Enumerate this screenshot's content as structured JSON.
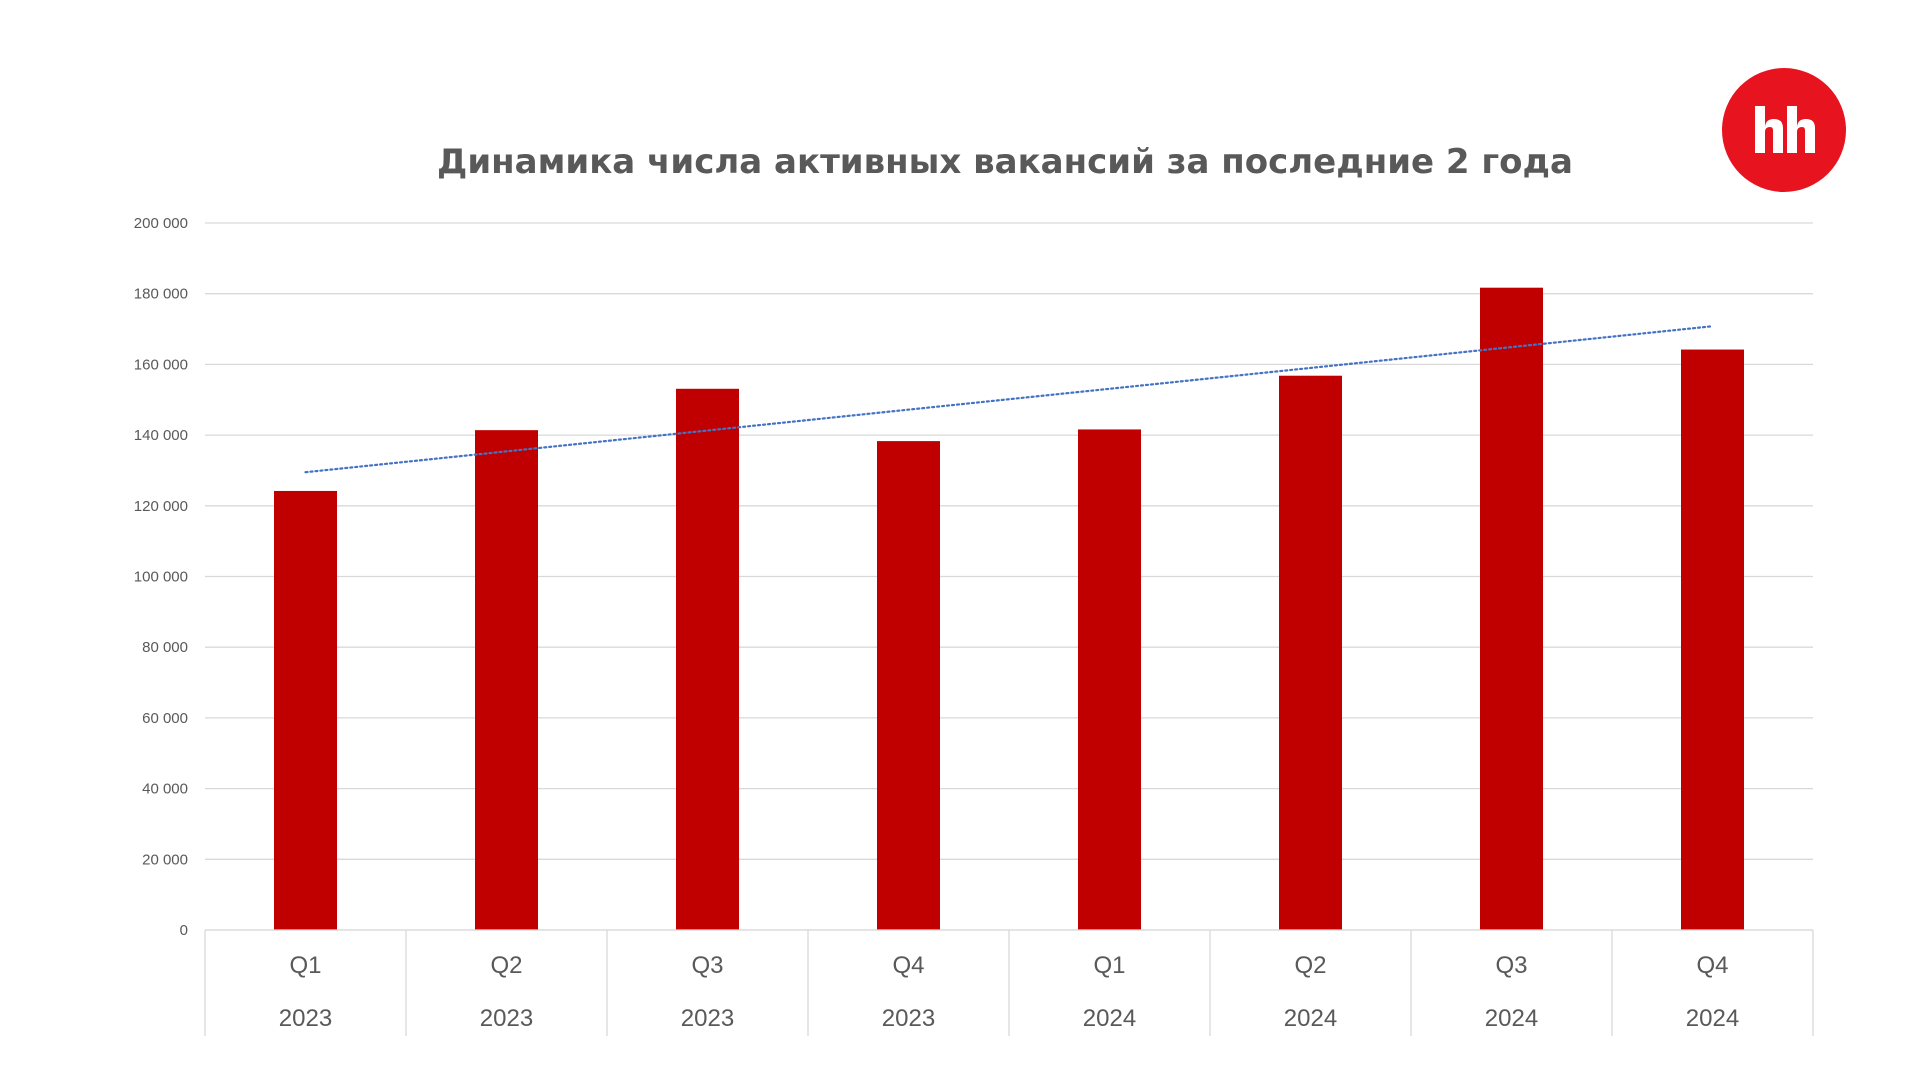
{
  "logo": {
    "text": "hh",
    "color": "#e7141f"
  },
  "chart_data": {
    "type": "bar",
    "title": "Динамика числа активных вакансий за последние 2 года",
    "categories": [
      {
        "quarter": "Q1",
        "year": "2023"
      },
      {
        "quarter": "Q2",
        "year": "2023"
      },
      {
        "quarter": "Q3",
        "year": "2023"
      },
      {
        "quarter": "Q4",
        "year": "2023"
      },
      {
        "quarter": "Q1",
        "year": "2024"
      },
      {
        "quarter": "Q2",
        "year": "2024"
      },
      {
        "quarter": "Q3",
        "year": "2024"
      },
      {
        "quarter": "Q4",
        "year": "2024"
      }
    ],
    "values": [
      124200,
      141400,
      153100,
      138300,
      141600,
      156800,
      181700,
      164200
    ],
    "ylim": [
      0,
      200000
    ],
    "yticks": [
      0,
      20000,
      40000,
      60000,
      80000,
      100000,
      120000,
      140000,
      160000,
      180000,
      200000
    ],
    "ytick_labels": [
      "0",
      "20 000",
      "40 000",
      "60 000",
      "80 000",
      "100 000",
      "120 000",
      "140 000",
      "160 000",
      "180 000",
      "200 000"
    ],
    "trendline": {
      "type": "linear",
      "style": "dotted",
      "start": 129500,
      "end": 170800,
      "color": "#4472c4"
    },
    "bar_color": "#c00000",
    "grid": true,
    "legend": "none"
  }
}
